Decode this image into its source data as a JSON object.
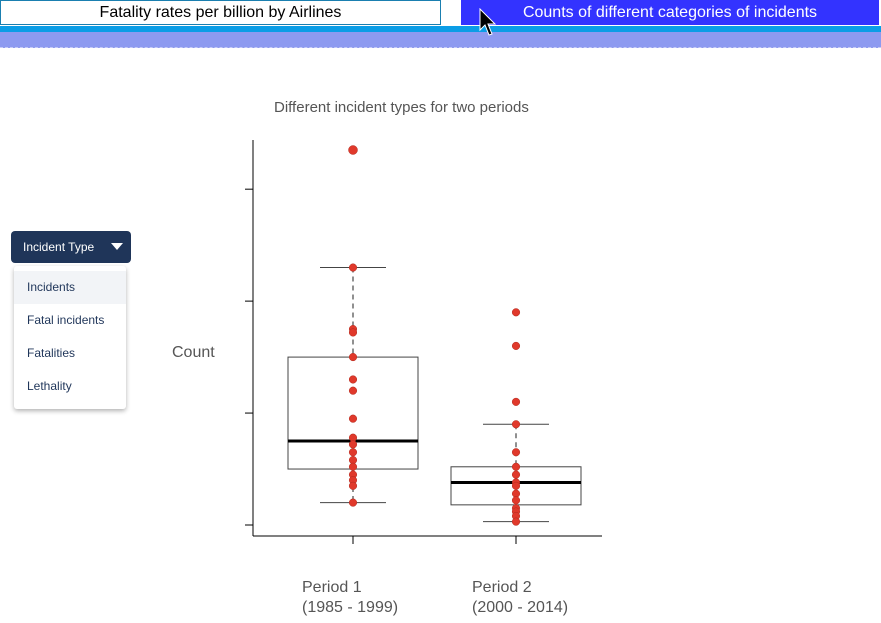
{
  "tabs": [
    {
      "label": "Fatality rates per billion by Airlines"
    },
    {
      "label": "Counts of different categories of incidents"
    }
  ],
  "dropdown": {
    "label": "Incident Type",
    "options": [
      "Incidents",
      "Fatal incidents",
      "Fatalities",
      "Lethality"
    ]
  },
  "colors": {
    "accent": "#3333ff",
    "point": "#e0392b",
    "dropdown": "#1f3559",
    "bar": "#0b9de6"
  },
  "chart_data": {
    "type": "box",
    "title": "Different incident types for two periods",
    "ylabel": "Count",
    "xlabel": "",
    "y_tick_labels_visible": false,
    "ylim": [
      0,
      35
    ],
    "categories": [
      {
        "name": "Period 1",
        "range": "(1985 - 1999)"
      },
      {
        "name": "Period 2",
        "range": "(2000 - 2014)"
      }
    ],
    "boxes": [
      {
        "whisker_low": 2,
        "q1": 5,
        "median": 7.5,
        "q3": 15,
        "whisker_high": 23
      },
      {
        "whisker_low": 0.3,
        "q1": 1.8,
        "median": 3.8,
        "q3": 5.2,
        "whisker_high": 9
      }
    ],
    "points": [
      [
        33.5,
        23,
        17.5,
        17.2,
        15,
        13,
        12,
        9.5,
        7.8,
        7.2,
        6.5,
        5.8,
        5.2,
        4.5,
        4,
        3.5,
        2
      ],
      [
        19,
        16,
        11,
        9,
        6.5,
        5.2,
        4.5,
        3.8,
        3.5,
        2.8,
        2.2,
        1.5,
        1.2,
        0.8,
        0.3
      ]
    ]
  }
}
